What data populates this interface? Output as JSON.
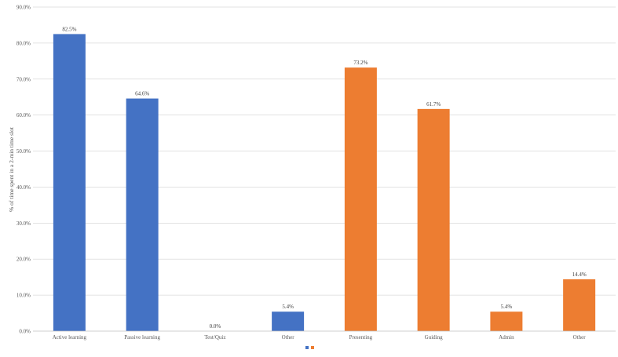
{
  "chart_data": {
    "type": "bar",
    "title": "",
    "xlabel": "",
    "ylabel": "% of time spent in a 2-min time slot",
    "ylim": [
      0,
      90
    ],
    "y_ticks": [
      "0.0%",
      "10.0%",
      "20.0%",
      "30.0%",
      "40.0%",
      "50.0%",
      "60.0%",
      "70.0%",
      "80.0%",
      "90.0%"
    ],
    "grid": true,
    "legend_position": "bottom",
    "categories": [
      "Active learning",
      "Passive learning",
      "Test/Quiz",
      "Other",
      "Presenting",
      "Guiding",
      "Admin",
      "Other"
    ],
    "series": [
      {
        "color": "#4472c4",
        "values": [
          82.5,
          64.6,
          0.0,
          5.4,
          null,
          null,
          null,
          null
        ]
      },
      {
        "color": "#ed7d31",
        "values": [
          null,
          null,
          null,
          null,
          73.2,
          61.7,
          5.4,
          14.4
        ]
      }
    ],
    "data_labels": [
      "82.5%",
      "64.6%",
      "0.0%",
      "5.4%",
      "73.2%",
      "61.7%",
      "5.4%",
      "14.4%"
    ]
  }
}
